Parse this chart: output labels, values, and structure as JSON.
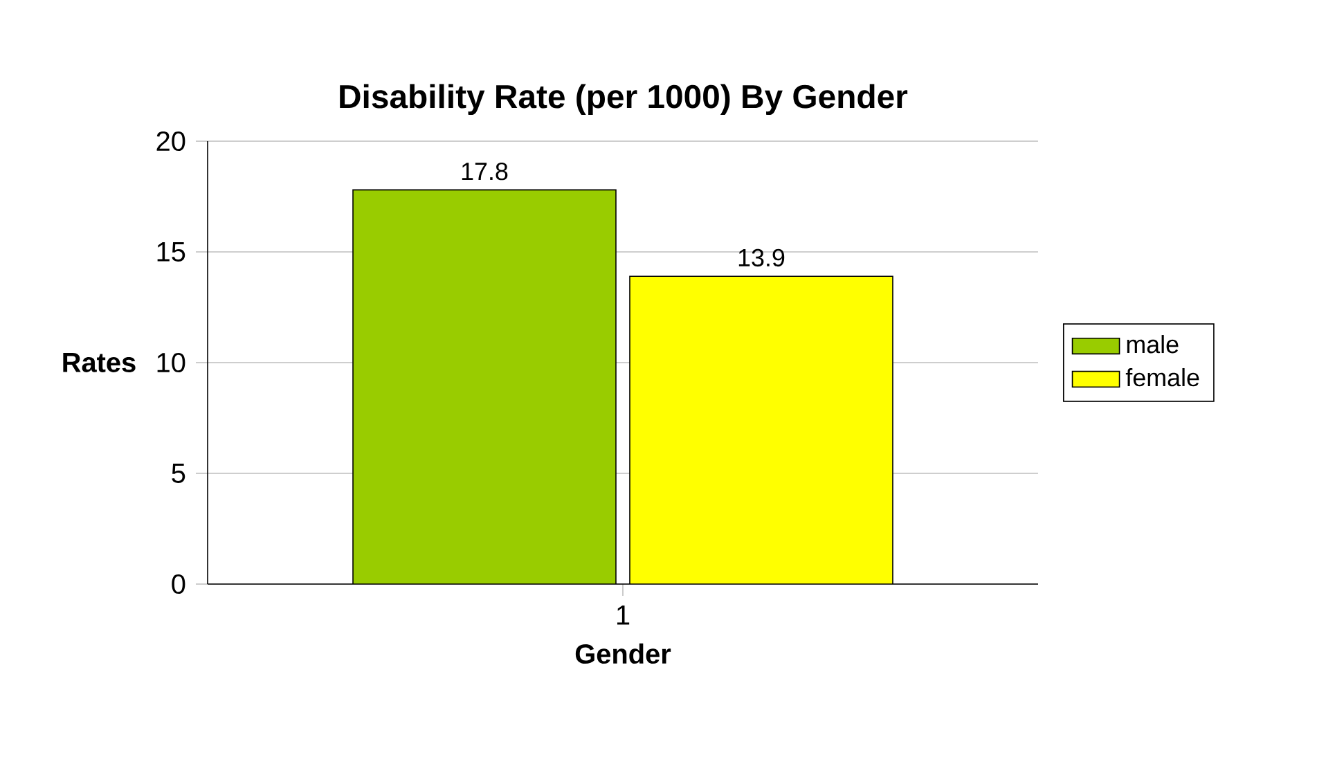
{
  "chart_data": {
    "type": "bar",
    "title": "Disability Rate (per 1000) By Gender",
    "xlabel": "Gender",
    "ylabel": "Rates",
    "categories": [
      "1"
    ],
    "series": [
      {
        "name": "male",
        "color": "#99cc00",
        "values": [
          17.8
        ]
      },
      {
        "name": "female",
        "color": "#ffff00",
        "values": [
          13.9
        ]
      }
    ],
    "ylim": [
      0,
      20
    ],
    "yticks": [
      0,
      5,
      10,
      15,
      20
    ],
    "grid": "y",
    "legend": "right",
    "data_labels": true
  }
}
